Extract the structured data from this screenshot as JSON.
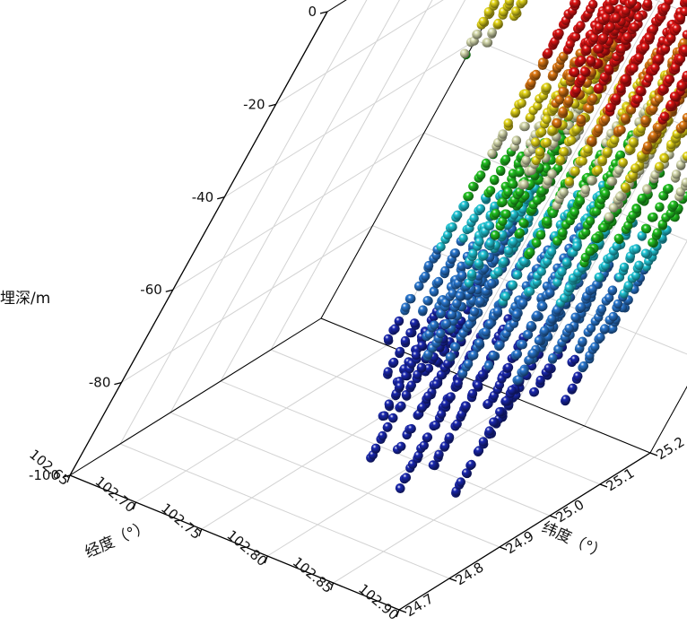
{
  "chart_data": {
    "type": "scatter3d",
    "title": "",
    "xlabel": "经度（°）",
    "ylabel": "纬度（°）",
    "zlabel": "埋深/m",
    "xlim": [
      102.65,
      102.9
    ],
    "ylim": [
      24.7,
      25.2
    ],
    "zlim": [
      -100,
      0
    ],
    "x_ticks": [
      "102.65",
      "102.70",
      "102.75",
      "102.80",
      "102.85",
      "102.90"
    ],
    "y_ticks": [
      "24.7",
      "24.8",
      "24.9",
      "25.0",
      "25.1",
      "25.2"
    ],
    "z_ticks": [
      "0",
      "-20",
      "-40",
      "-60",
      "-80",
      "-100"
    ],
    "grid": true,
    "color_scale": "depth (red at 0 m → dark blue at deepest)",
    "colors": {
      "shallow": "#e01414",
      "orange": "#e07a14",
      "yellow": "#e6d81a",
      "pale": "#d8dcb0",
      "green": "#22c322",
      "cyan": "#22c8d8",
      "blue": "#2a78d0",
      "deep": "#1a28b0"
    },
    "boreholes": [
      {
        "x": 102.665,
        "y": 25.12,
        "top": -5,
        "bottom": -36
      },
      {
        "x": 102.672,
        "y": 25.13,
        "top": -5,
        "bottom": -34
      },
      {
        "x": 102.678,
        "y": 25.14,
        "top": -5,
        "bottom": -29
      },
      {
        "x": 102.886,
        "y": 25.19,
        "top": -2,
        "bottom": -36
      },
      {
        "x": 102.75,
        "y": 24.95,
        "top": 1,
        "bottom": -78
      },
      {
        "x": 102.755,
        "y": 24.98,
        "top": 1,
        "bottom": -85
      },
      {
        "x": 102.76,
        "y": 25.0,
        "top": 1,
        "bottom": -88
      },
      {
        "x": 102.765,
        "y": 25.02,
        "top": 1,
        "bottom": -84
      },
      {
        "x": 102.77,
        "y": 25.04,
        "top": 1,
        "bottom": -86
      },
      {
        "x": 102.775,
        "y": 24.94,
        "top": 1,
        "bottom": -90
      },
      {
        "x": 102.78,
        "y": 24.97,
        "top": 1,
        "bottom": -82
      },
      {
        "x": 102.785,
        "y": 25.0,
        "top": 1,
        "bottom": -90
      },
      {
        "x": 102.79,
        "y": 25.03,
        "top": 1,
        "bottom": -86
      },
      {
        "x": 102.795,
        "y": 25.06,
        "top": 1,
        "bottom": -80
      },
      {
        "x": 102.8,
        "y": 24.92,
        "top": 1,
        "bottom": -92
      },
      {
        "x": 102.805,
        "y": 24.96,
        "top": 1,
        "bottom": -86
      },
      {
        "x": 102.81,
        "y": 25.0,
        "top": 1,
        "bottom": -88
      },
      {
        "x": 102.815,
        "y": 25.04,
        "top": 1,
        "bottom": -84
      },
      {
        "x": 102.82,
        "y": 25.07,
        "top": 1,
        "bottom": -78
      },
      {
        "x": 102.825,
        "y": 24.93,
        "top": 1,
        "bottom": -94
      },
      {
        "x": 102.83,
        "y": 24.97,
        "top": 1,
        "bottom": -84
      },
      {
        "x": 102.835,
        "y": 25.01,
        "top": 1,
        "bottom": -88
      },
      {
        "x": 102.84,
        "y": 25.05,
        "top": 1,
        "bottom": -82
      },
      {
        "x": 102.845,
        "y": 24.95,
        "top": 1,
        "bottom": -86
      },
      {
        "x": 102.85,
        "y": 24.99,
        "top": 1,
        "bottom": -80
      },
      {
        "x": 102.855,
        "y": 25.03,
        "top": 1,
        "bottom": -74
      },
      {
        "x": 102.86,
        "y": 25.07,
        "top": 1,
        "bottom": -70
      },
      {
        "x": 102.79,
        "y": 24.9,
        "top": 1,
        "bottom": -95
      },
      {
        "x": 102.82,
        "y": 24.89,
        "top": 1,
        "bottom": -98
      },
      {
        "x": 102.85,
        "y": 24.92,
        "top": 1,
        "bottom": -96
      },
      {
        "x": 102.87,
        "y": 25.0,
        "top": 1,
        "bottom": -80
      },
      {
        "x": 102.76,
        "y": 25.08,
        "top": 1,
        "bottom": -75
      },
      {
        "x": 102.8,
        "y": 25.1,
        "top": 1,
        "bottom": -72
      }
    ]
  }
}
